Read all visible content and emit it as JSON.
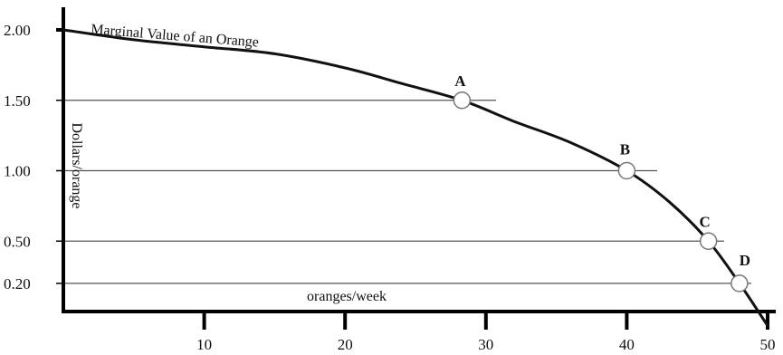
{
  "chart_data": {
    "type": "line",
    "title": "",
    "xlabel": "oranges/week",
    "ylabel": "Dollars/orange",
    "xlim": [
      0,
      50
    ],
    "ylim": [
      0,
      2.0
    ],
    "x_ticks": [
      10,
      20,
      30,
      40,
      50
    ],
    "x_tick_labels": [
      "10",
      "20",
      "30",
      "40",
      "50"
    ],
    "y_ticks": [
      2.0,
      1.5,
      1.0,
      0.5,
      0.2
    ],
    "y_tick_labels": [
      "2.00",
      "1.50",
      "1.00",
      "0.50",
      "0.20"
    ],
    "series": [
      {
        "name": "Marginal Value of an Orange",
        "x": [
          0,
          5,
          10,
          15,
          20,
          24,
          28.3,
          32,
          36,
          40,
          43,
          45.8,
          48,
          50
        ],
        "y": [
          2.0,
          1.93,
          1.88,
          1.83,
          1.73,
          1.62,
          1.5,
          1.35,
          1.2,
          1.0,
          0.78,
          0.5,
          0.2,
          -0.1
        ]
      }
    ],
    "points": [
      {
        "label": "A",
        "x": 28.3,
        "y": 1.5
      },
      {
        "label": "B",
        "x": 40,
        "y": 1.0
      },
      {
        "label": "C",
        "x": 45.8,
        "y": 0.5
      },
      {
        "label": "D",
        "x": 48,
        "y": 0.2
      }
    ],
    "grid": "horizontal reference lines at point price levels",
    "legend": "none",
    "colors": {
      "line": "#111111",
      "axis": "#000000",
      "grid": "#555555",
      "marker_fill": "#ffffff",
      "marker_stroke": "#777777"
    }
  }
}
